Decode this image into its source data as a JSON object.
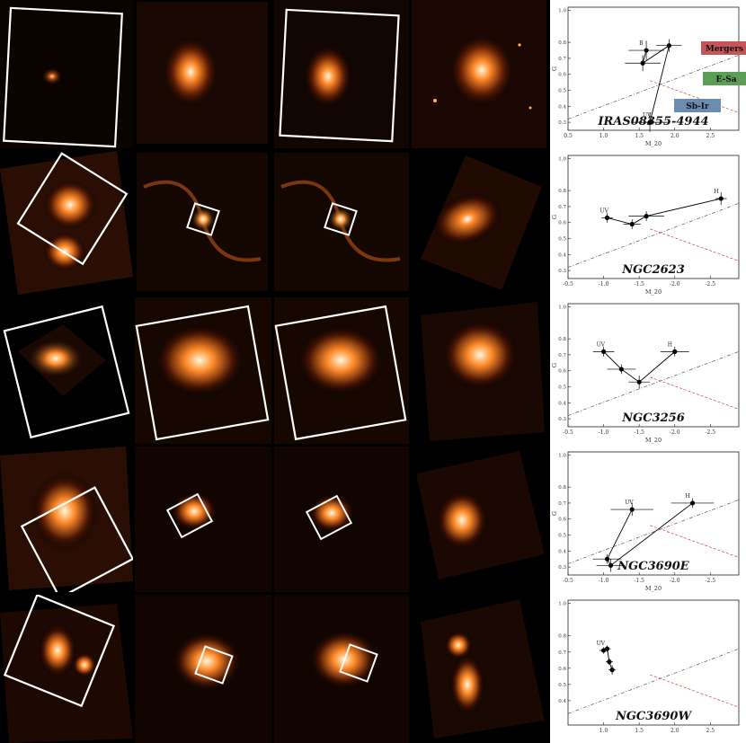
{
  "figure": {
    "rows": [
      {
        "name": "IRAS08355-4944",
        "x_ticks": [
          "0.5",
          "1.0",
          "1.5",
          "2.0",
          "2.5"
        ],
        "x_range": [
          0.5,
          2.9
        ],
        "y_ticks": [
          "1.0",
          "0.8",
          "0.7",
          "0.6",
          "0.5",
          "0.4",
          "0.3"
        ],
        "y_range": [
          0.25,
          1.02
        ],
        "xlabel": "M_20",
        "ylabel": "G",
        "points": [
          {
            "label": "B",
            "x": 1.6,
            "y": 0.75,
            "xerr": 0.25,
            "yerr": 0.06
          },
          {
            "label": "",
            "x": 1.55,
            "y": 0.67,
            "xerr": 0.25,
            "yerr": 0.05
          },
          {
            "label": "",
            "x": 1.92,
            "y": 0.78,
            "xerr": 0.18,
            "yerr": 0.04
          },
          {
            "label": "UV",
            "x": 1.65,
            "y": 0.3,
            "xerr": 0.25,
            "yerr": 0.06
          }
        ],
        "legend": [
          {
            "label": "Mergers",
            "color": "#c5555a"
          },
          {
            "label": "E-Sa",
            "color": "#5b9f56"
          },
          {
            "label": "Sb-Ir",
            "color": "#6a8cae"
          }
        ]
      },
      {
        "name": "NGC2623",
        "x_ticks": [
          "-0.5",
          "-1.0",
          "-1.5",
          "-2.0",
          "-2.5"
        ],
        "x_range": [
          -0.5,
          -2.9
        ],
        "y_ticks": [
          "1.0",
          "0.8",
          "0.7",
          "0.6",
          "0.5",
          "0.4",
          "0.3"
        ],
        "y_range": [
          0.25,
          1.02
        ],
        "xlabel": "M_20",
        "ylabel": "G",
        "points": [
          {
            "label": "UV",
            "x": -1.05,
            "y": 0.63,
            "xerr": 0.08,
            "yerr": 0.03
          },
          {
            "label": "",
            "x": -1.4,
            "y": 0.59,
            "xerr": 0.12,
            "yerr": 0.03
          },
          {
            "label": "",
            "x": -1.6,
            "y": 0.64,
            "xerr": 0.25,
            "yerr": 0.03
          },
          {
            "label": "H",
            "x": -2.65,
            "y": 0.75,
            "xerr": 0.08,
            "yerr": 0.04
          }
        ]
      },
      {
        "name": "NGC3256",
        "x_ticks": [
          "-0.5",
          "-1.0",
          "-1.5",
          "-2.0",
          "-2.5"
        ],
        "x_range": [
          -0.5,
          -2.9
        ],
        "y_ticks": [
          "1.0",
          "0.8",
          "0.7",
          "0.6",
          "0.5",
          "0.4",
          "0.3"
        ],
        "y_range": [
          0.25,
          1.02
        ],
        "xlabel": "M_20",
        "ylabel": "G",
        "points": [
          {
            "label": "UV",
            "x": -1.0,
            "y": 0.72,
            "xerr": 0.15,
            "yerr": 0.03
          },
          {
            "label": "",
            "x": -1.25,
            "y": 0.61,
            "xerr": 0.2,
            "yerr": 0.03
          },
          {
            "label": "",
            "x": -1.5,
            "y": 0.53,
            "xerr": 0.15,
            "yerr": 0.04
          },
          {
            "label": "H",
            "x": -2.0,
            "y": 0.72,
            "xerr": 0.2,
            "yerr": 0.03
          }
        ]
      },
      {
        "name": "NGC3690E",
        "x_ticks": [
          "-0.5",
          "-1.0",
          "-1.5",
          "-2.0",
          "-2.5"
        ],
        "x_range": [
          -0.5,
          -2.9
        ],
        "y_ticks": [
          "1.0",
          "0.8",
          "0.7",
          "0.6",
          "0.5",
          "0.4",
          "0.3"
        ],
        "y_range": [
          0.25,
          1.02
        ],
        "xlabel": "M_20",
        "ylabel": "G",
        "points": [
          {
            "label": "UV",
            "x": -1.4,
            "y": 0.66,
            "xerr": 0.3,
            "yerr": 0.04
          },
          {
            "label": "",
            "x": -1.05,
            "y": 0.35,
            "xerr": 0.2,
            "yerr": 0.03
          },
          {
            "label": "",
            "x": -1.1,
            "y": 0.31,
            "xerr": 0.2,
            "yerr": 0.04
          },
          {
            "label": "H",
            "x": -2.25,
            "y": 0.7,
            "xerr": 0.3,
            "yerr": 0.03
          }
        ]
      },
      {
        "name": "NGC3690W",
        "x_ticks": [
          "1.0",
          "1.5",
          "2.0",
          "2.5"
        ],
        "x_range": [
          0.5,
          2.9
        ],
        "y_ticks": [
          "1.0",
          "0.8",
          "0.7",
          "0.6",
          "0.5",
          "0.4"
        ],
        "y_range": [
          0.25,
          1.02
        ],
        "xlabel": "",
        "ylabel": "",
        "points": [
          {
            "label": "UV",
            "x": 1.0,
            "y": 0.71,
            "xerr": 0.06,
            "yerr": 0.02
          },
          {
            "label": "",
            "x": 1.05,
            "y": 0.72,
            "xerr": 0.05,
            "yerr": 0.02
          },
          {
            "label": "",
            "x": 1.08,
            "y": 0.64,
            "xerr": 0.05,
            "yerr": 0.02
          },
          {
            "label": "",
            "x": 1.12,
            "y": 0.59,
            "xerr": 0.05,
            "yerr": 0.03
          }
        ]
      }
    ]
  }
}
